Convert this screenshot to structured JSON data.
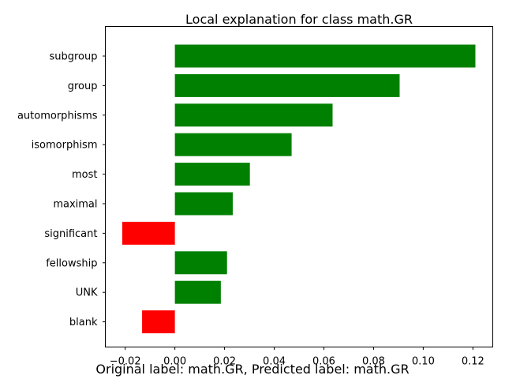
{
  "chart_data": {
    "type": "bar",
    "orientation": "horizontal",
    "title": "Local explanation for class math.GR",
    "xlabel": "",
    "ylabel": "",
    "categories": [
      "subgroup",
      "group",
      "automorphisms",
      "isomorphism",
      "most",
      "maximal",
      "significant",
      "fellowship",
      "UNK",
      "blank"
    ],
    "values": [
      0.121,
      0.0905,
      0.0635,
      0.047,
      0.0302,
      0.0233,
      -0.0212,
      0.021,
      0.0185,
      -0.0132
    ],
    "xlim": [
      -0.028,
      0.128
    ],
    "xticks": [
      -0.02,
      0.0,
      0.02,
      0.04,
      0.06,
      0.08,
      0.1,
      0.12
    ],
    "xtick_labels": [
      "−0.02",
      "0.00",
      "0.02",
      "0.04",
      "0.06",
      "0.08",
      "0.10",
      "0.12"
    ],
    "grid": false,
    "colors": {
      "positive": "#008000",
      "negative": "#ff0000"
    }
  },
  "caption": "Original label: math.GR, Predicted label: math.GR"
}
